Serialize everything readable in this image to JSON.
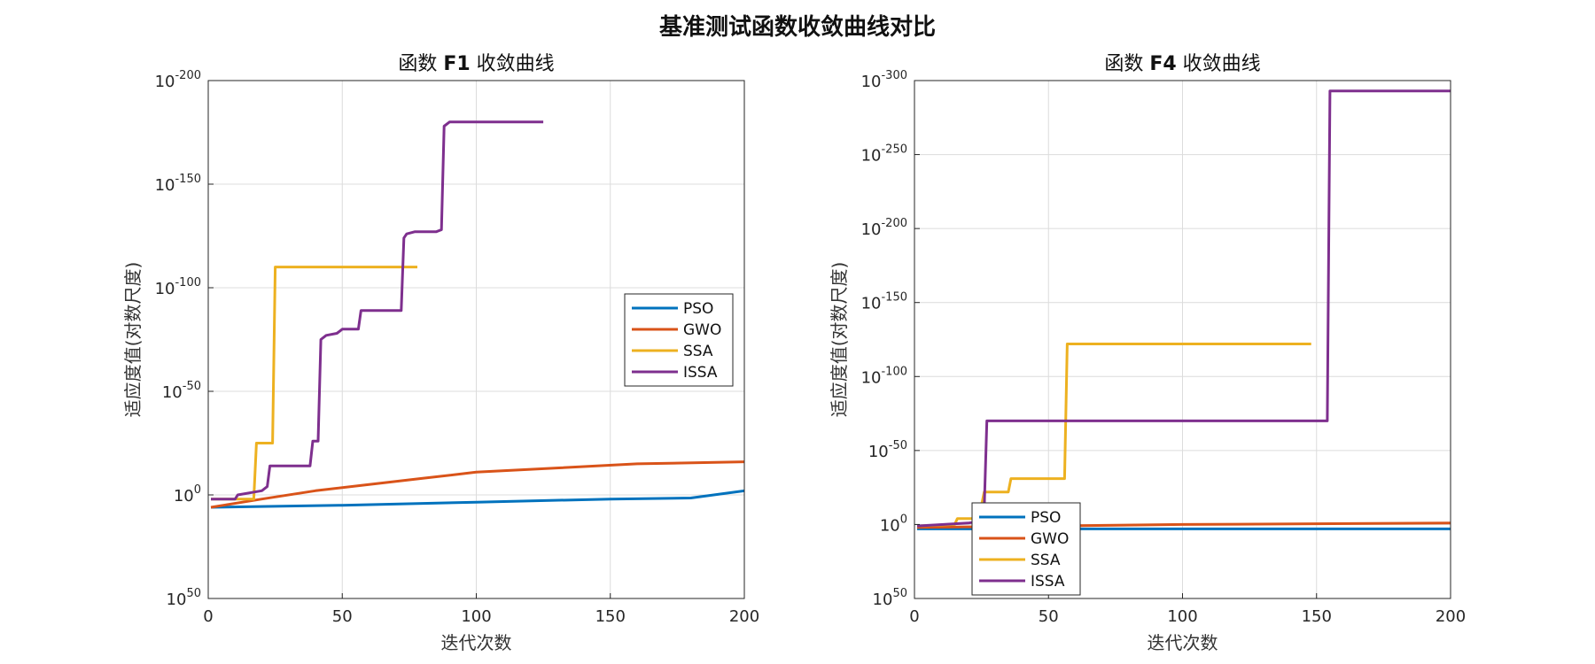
{
  "figure_title": "基准测试函数收敛曲线对比",
  "colors": {
    "PSO": "#0072BD",
    "GWO": "#D95319",
    "SSA": "#EDB120",
    "ISSA": "#7E2F8E",
    "grid_major": "#dcdcdc",
    "grid_minor": "#ececec",
    "axis": "#262626"
  },
  "chart_data": [
    {
      "type": "line",
      "title_prefix": "函数 ",
      "title_bold": "F1",
      "title_suffix": " 收敛曲线",
      "xlabel": "迭代次数",
      "ylabel": "适应度值(对数尺度)",
      "xscale": "linear",
      "yscale": "log",
      "xlim": [
        0,
        200
      ],
      "ylim_exponent": [
        -200,
        50
      ],
      "xticks": [
        0,
        50,
        100,
        150,
        200
      ],
      "yticks_exponent": [
        50,
        0,
        -50,
        -100,
        -150,
        -200
      ],
      "grid": true,
      "legend_position": "center-right",
      "series": [
        {
          "name": "PSO",
          "points": [
            [
              1,
              6
            ],
            [
              50,
              5
            ],
            [
              100,
              3.5
            ],
            [
              150,
              2
            ],
            [
              180,
              1.5
            ],
            [
              200,
              -2
            ]
          ]
        },
        {
          "name": "GWO",
          "points": [
            [
              1,
              6
            ],
            [
              20,
              2
            ],
            [
              40,
              -2
            ],
            [
              60,
              -5
            ],
            [
              80,
              -8
            ],
            [
              100,
              -11
            ],
            [
              130,
              -13
            ],
            [
              160,
              -15
            ],
            [
              200,
              -16
            ]
          ]
        },
        {
          "name": "SSA",
          "points": [
            [
              1,
              2
            ],
            [
              17,
              2
            ],
            [
              18,
              -25
            ],
            [
              24,
              -25
            ],
            [
              25,
              -110
            ],
            [
              78,
              -110
            ]
          ]
        },
        {
          "name": "ISSA",
          "points": [
            [
              1,
              2
            ],
            [
              10,
              2
            ],
            [
              11,
              0
            ],
            [
              20,
              -2
            ],
            [
              22,
              -4
            ],
            [
              23,
              -14
            ],
            [
              38,
              -14
            ],
            [
              39,
              -26
            ],
            [
              41,
              -26
            ],
            [
              42,
              -75
            ],
            [
              44,
              -77
            ],
            [
              48,
              -78
            ],
            [
              50,
              -80
            ],
            [
              56,
              -80
            ],
            [
              57,
              -89
            ],
            [
              72,
              -89
            ],
            [
              73,
              -124
            ],
            [
              74,
              -126
            ],
            [
              77,
              -127
            ],
            [
              85,
              -127
            ],
            [
              87,
              -128
            ],
            [
              88,
              -178
            ],
            [
              90,
              -180
            ],
            [
              125,
              -180
            ]
          ]
        }
      ]
    },
    {
      "type": "line",
      "title_prefix": "函数 ",
      "title_bold": "F4",
      "title_suffix": " 收敛曲线",
      "xlabel": "迭代次数",
      "ylabel": "适应度值(对数尺度)",
      "xscale": "linear",
      "yscale": "log",
      "xlim": [
        0,
        200
      ],
      "ylim_exponent": [
        -300,
        50
      ],
      "xticks": [
        0,
        50,
        100,
        150,
        200
      ],
      "yticks_exponent": [
        50,
        0,
        -50,
        -100,
        -150,
        -200,
        -250,
        -300
      ],
      "grid": true,
      "legend_position": "bottom-left",
      "series": [
        {
          "name": "PSO",
          "points": [
            [
              1,
              3
            ],
            [
              200,
              3
            ]
          ]
        },
        {
          "name": "GWO",
          "points": [
            [
              1,
              2
            ],
            [
              50,
              1
            ],
            [
              100,
              0
            ],
            [
              200,
              -1
            ]
          ]
        },
        {
          "name": "SSA",
          "points": [
            [
              1,
              1
            ],
            [
              15,
              0
            ],
            [
              16,
              -4
            ],
            [
              24,
              -4
            ],
            [
              26,
              -22
            ],
            [
              35,
              -22
            ],
            [
              36,
              -31
            ],
            [
              56,
              -31
            ],
            [
              57,
              -122
            ],
            [
              70,
              -122
            ],
            [
              148,
              -122
            ]
          ]
        },
        {
          "name": "ISSA",
          "points": [
            [
              1,
              1
            ],
            [
              20,
              -1
            ],
            [
              24,
              -2
            ],
            [
              26,
              -10
            ],
            [
              27,
              -70
            ],
            [
              154,
              -70
            ],
            [
              155,
              -293
            ],
            [
              200,
              -293
            ]
          ]
        }
      ]
    }
  ]
}
